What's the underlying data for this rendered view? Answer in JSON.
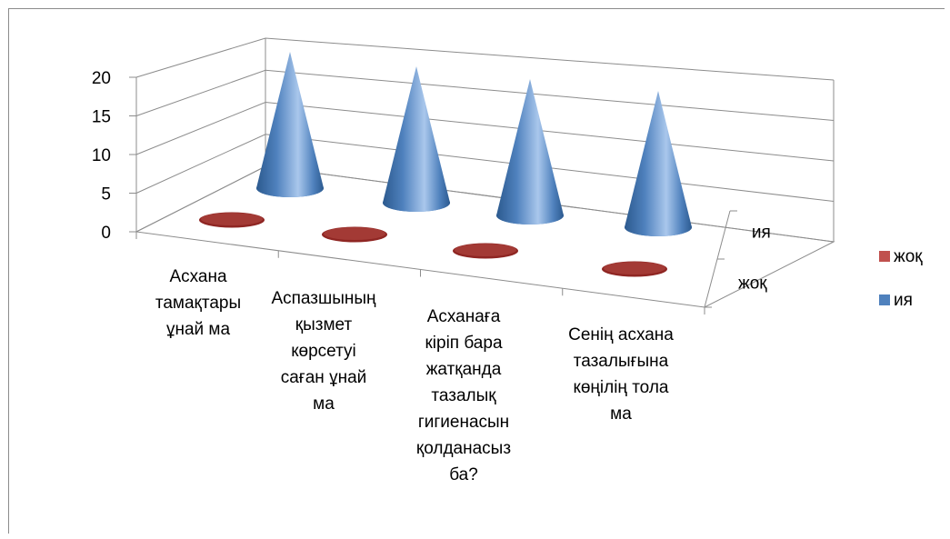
{
  "chart_data": {
    "type": "bar",
    "shape": "cone",
    "view": "3d",
    "categories": [
      "Асхана тамақтары ұнай ма",
      "Аспазшының қызмет көрсетуі саған ұнай ма",
      "Асханаға кіріп бара жатқанда тазалық гигиенасын қолданасыз ба?",
      "Сенің асхана тазалығына көңілің тола ма"
    ],
    "category_lines": [
      [
        "Асхана",
        "тамақтары",
        "ұнай ма"
      ],
      [
        "Аспазшының",
        "қызмет",
        "көрсетуі",
        "саған ұнай",
        "ма"
      ],
      [
        "Асханаға",
        "кіріп бара",
        "жатқанда",
        "тазалық",
        "гигиенасын",
        "қолданасыз",
        "ба?"
      ],
      [
        "Сенің асхана",
        "тазалығына",
        "көңілің тола",
        "ма"
      ]
    ],
    "series": [
      {
        "name": "жоқ",
        "color": "#c0504d",
        "values": [
          0,
          0,
          0,
          0
        ]
      },
      {
        "name": "ия",
        "color": "#4f81bd",
        "values": [
          20,
          20,
          20,
          20
        ]
      }
    ],
    "depth_labels": [
      "ия",
      "жоқ"
    ],
    "y_ticks": [
      "0",
      "5",
      "10",
      "15",
      "20"
    ],
    "ylim": [
      0,
      20
    ],
    "grid": true,
    "legend_position": "right"
  }
}
